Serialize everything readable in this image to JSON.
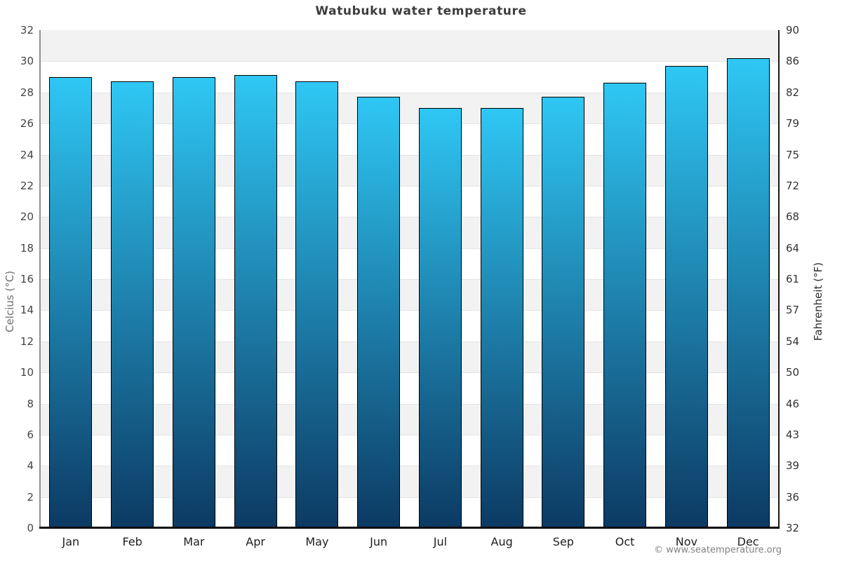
{
  "title": "Watubuku water temperature",
  "attribution": "© www.seatemperature.org",
  "chart_data": {
    "type": "bar",
    "title": "Watubuku water temperature",
    "categories": [
      "Jan",
      "Feb",
      "Mar",
      "Apr",
      "May",
      "Jun",
      "Jul",
      "Aug",
      "Sep",
      "Oct",
      "Nov",
      "Dec"
    ],
    "values": [
      29.0,
      28.7,
      29.0,
      29.1,
      28.7,
      27.7,
      27.0,
      27.0,
      27.7,
      28.6,
      29.7,
      30.2
    ],
    "unit": "°C",
    "xlabel": "",
    "ylabel_left": "Celcius (°C)",
    "ylabel_right": "Fahrenheit (°F)",
    "ylim": [
      0,
      32
    ],
    "celsius_ticks": [
      32,
      30,
      28,
      26,
      24,
      22,
      20,
      18,
      16,
      14,
      12,
      10,
      8,
      6,
      4,
      2,
      0
    ],
    "fahrenheit_ticks": [
      "90",
      "86",
      "82",
      "79",
      "75",
      "72",
      "68",
      "64",
      "61",
      "57",
      "54",
      "50",
      "46",
      "43",
      "39",
      "36",
      "32"
    ],
    "grid": "alternating horizontal bands every 2°C, gray band at top (30–32)",
    "legend": "none",
    "colors": {
      "bar_gradient_top": "#2fc7f4",
      "bar_gradient_bottom": "#0c3a63",
      "bar_border": "#000000",
      "band_gray": "#f2f2f2",
      "band_white": "#ffffff",
      "gridline": "#e4e4e4",
      "left_axis": "#909090",
      "right_axis": "#1a1a1a",
      "bottom_axis": "#0d0d0d",
      "title_text": "#3d3d3d",
      "tick_text": "#454545",
      "attribution_text": "#828282"
    }
  }
}
